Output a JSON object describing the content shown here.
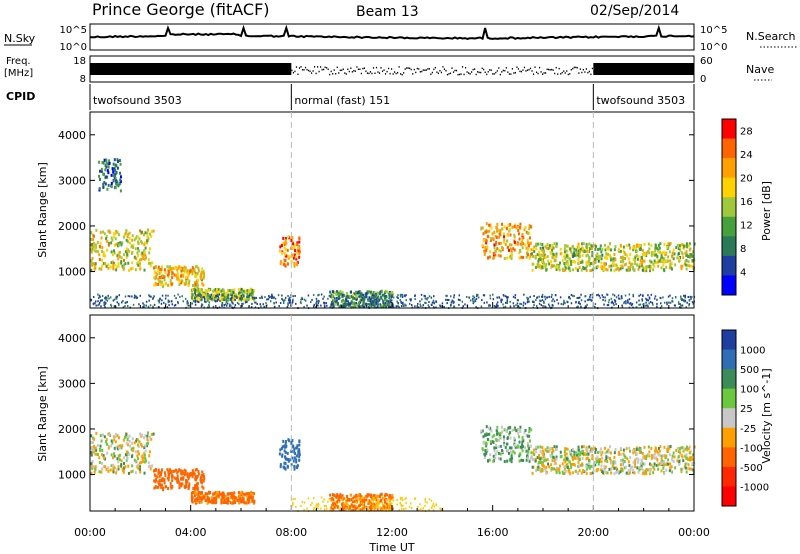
{
  "header": {
    "title": "Prince George (fitACF)",
    "beam": "Beam 13",
    "date": "02/Sep/2014"
  },
  "summary_panels": {
    "nsky_label": "N.Sky",
    "nsky_ticks": [
      "10^5",
      "10^0"
    ],
    "nsearch_label": "N.Search",
    "nsearch_ticks": [
      "10^5",
      "10^0"
    ],
    "freq_label_1": "Freq.",
    "freq_label_2": "[MHz]",
    "freq_ticks": [
      "18",
      "8"
    ],
    "nave_label": "Nave",
    "nave_ticks": [
      "60",
      "0"
    ],
    "cpid_label": "CPID",
    "cpid_segments": [
      {
        "label": "twofsound 3503",
        "start_hour": 0,
        "end_hour": 8
      },
      {
        "label": "normal (fast) 151",
        "start_hour": 8,
        "end_hour": 20
      },
      {
        "label": "twofsound 3503",
        "start_hour": 20,
        "end_hour": 24
      }
    ]
  },
  "chart_data": [
    {
      "type": "heatmap",
      "name": "power",
      "ylabel": "Slant Range [km]",
      "ylim": [
        200,
        4500
      ],
      "yticks": [
        1000,
        2000,
        3000,
        4000
      ],
      "xlim": [
        0,
        24
      ],
      "colorbar": {
        "label": "Power [dB]",
        "ticks": [
          4,
          8,
          12,
          16,
          20,
          24,
          28
        ],
        "range": [
          0,
          30
        ],
        "colors": [
          "#0000ff",
          "#1e3fa0",
          "#2a7a5a",
          "#48a03c",
          "#a0c83c",
          "#ffd200",
          "#ffa000",
          "#ff6400",
          "#ff0000"
        ]
      },
      "bands": [
        {
          "x0": 0.0,
          "x1": 2.5,
          "r0": 1050,
          "r1": 1950,
          "power": 18
        },
        {
          "x0": 2.5,
          "x1": 4.5,
          "r0": 700,
          "r1": 1150,
          "power": 20
        },
        {
          "x0": 4.0,
          "x1": 6.5,
          "r0": 400,
          "r1": 650,
          "power": 14
        },
        {
          "x0": 7.5,
          "x1": 8.3,
          "r0": 1150,
          "r1": 1800,
          "power": 24
        },
        {
          "x0": 9.5,
          "x1": 12.0,
          "r0": 250,
          "r1": 600,
          "power": 10
        },
        {
          "x0": 15.5,
          "x1": 17.5,
          "r0": 1300,
          "r1": 2100,
          "power": 22
        },
        {
          "x0": 17.5,
          "x1": 24.0,
          "r0": 1050,
          "r1": 1650,
          "power": 16
        },
        {
          "x0": 0.3,
          "x1": 1.2,
          "r0": 2800,
          "r1": 3500,
          "power": 6
        }
      ]
    },
    {
      "type": "heatmap",
      "name": "velocity",
      "ylabel": "Slant Range [km]",
      "ylim": [
        200,
        4500
      ],
      "yticks": [
        1000,
        2000,
        3000,
        4000
      ],
      "xlim": [
        0,
        24
      ],
      "xticks": [
        "00:00",
        "04:00",
        "08:00",
        "12:00",
        "16:00",
        "20:00",
        "00:00"
      ],
      "xlabel": "Time UT",
      "colorbar": {
        "label": "Velocity [m s^-1]",
        "ticks": [
          "1000",
          "500",
          "100",
          "25",
          "-25",
          "-100",
          "-500",
          "-1000"
        ],
        "colors": [
          "#1e3fa0",
          "#2f6eb4",
          "#3c8c5a",
          "#6cc83c",
          "#c8c8c8",
          "#ffa000",
          "#ff6400",
          "#ff2800",
          "#ff0000"
        ]
      },
      "bands": [
        {
          "x0": 0.0,
          "x1": 2.5,
          "r0": 1050,
          "r1": 1950,
          "vel": 0
        },
        {
          "x0": 2.5,
          "x1": 4.5,
          "r0": 700,
          "r1": 1150,
          "vel": -200
        },
        {
          "x0": 4.0,
          "x1": 6.5,
          "r0": 400,
          "r1": 650,
          "vel": -150
        },
        {
          "x0": 7.5,
          "x1": 8.3,
          "r0": 1150,
          "r1": 1800,
          "vel": 400
        },
        {
          "x0": 9.5,
          "x1": 12.0,
          "r0": 250,
          "r1": 600,
          "vel": -150
        },
        {
          "x0": 15.5,
          "x1": 17.5,
          "r0": 1300,
          "r1": 2100,
          "vel": 60
        },
        {
          "x0": 17.5,
          "x1": 24.0,
          "r0": 1050,
          "r1": 1650,
          "vel": 0
        }
      ]
    }
  ]
}
